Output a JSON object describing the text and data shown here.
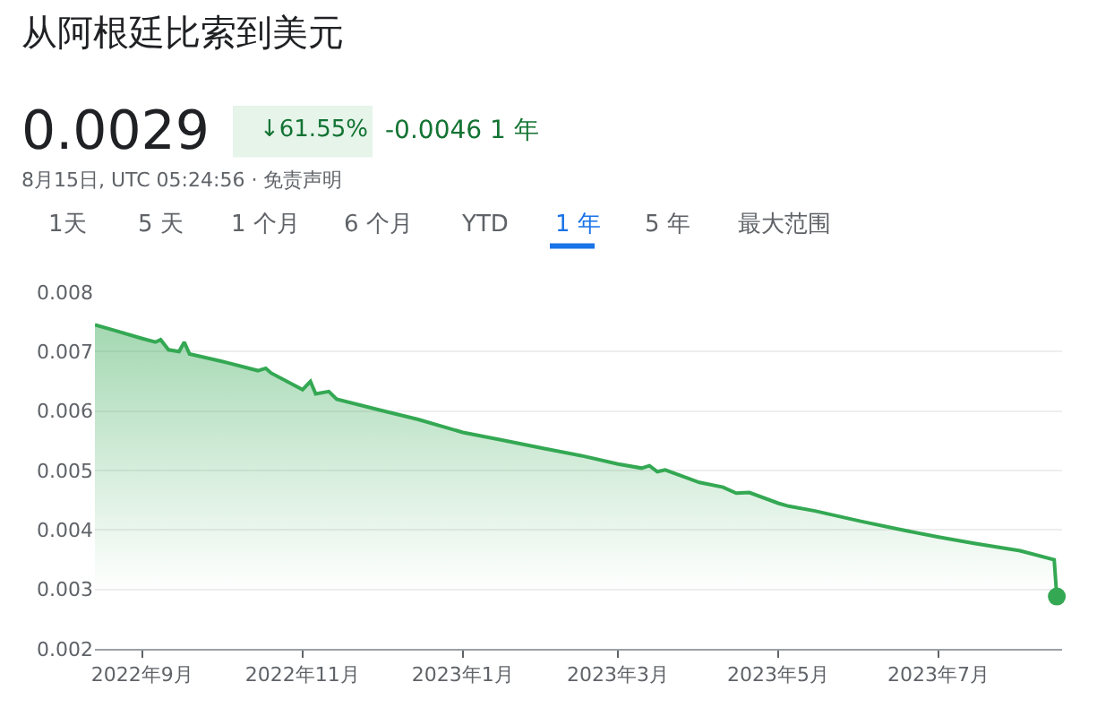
{
  "chart_data": {
    "type": "area",
    "title": "从阿根廷比索到美元",
    "annotations": [
      "0.0029",
      "↓61.55%",
      "-0.0046 1 年",
      "8月15日, UTC 05:24:56 · 免责声明",
      "1天",
      "5 天",
      "1 个月",
      "6 个月",
      "YTD",
      "1 年",
      "5 年",
      "最大范围"
    ],
    "series": [
      {
        "marker": "none",
        "color": "#34a853",
        "x": [
          "2022-08-14",
          "2022-08-22",
          "2022-09-01",
          "2022-09-06",
          "2022-09-08",
          "2022-09-11",
          "2022-09-15",
          "2022-09-17",
          "2022-09-19",
          "2022-10-01",
          "2022-10-15",
          "2022-10-18",
          "2022-10-20",
          "2022-11-01",
          "2022-11-04",
          "2022-11-06",
          "2022-11-11",
          "2022-11-14",
          "2022-12-01",
          "2022-12-15",
          "2023-01-01",
          "2023-01-15",
          "2023-02-01",
          "2023-02-15",
          "2023-03-01",
          "2023-03-10",
          "2023-03-13",
          "2023-03-16",
          "2023-03-19",
          "2023-04-01",
          "2023-04-10",
          "2023-04-15",
          "2023-04-20",
          "2023-05-01",
          "2023-05-05",
          "2023-05-15",
          "2023-06-01",
          "2023-06-15",
          "2023-07-01",
          "2023-07-15",
          "2023-08-01",
          "2023-08-14",
          "2023-08-15"
        ],
        "values": [
          0.00745,
          0.00735,
          0.00722,
          0.00716,
          0.0072,
          0.00703,
          0.007,
          0.00716,
          0.00696,
          0.00684,
          0.00668,
          0.00672,
          0.00664,
          0.00636,
          0.0065,
          0.00629,
          0.00633,
          0.0062,
          0.00601,
          0.00586,
          0.00564,
          0.00552,
          0.00537,
          0.00525,
          0.00511,
          0.00504,
          0.00508,
          0.00498,
          0.00501,
          0.0048,
          0.00472,
          0.00462,
          0.00463,
          0.00445,
          0.0044,
          0.00432,
          0.00415,
          0.00402,
          0.00388,
          0.00377,
          0.00365,
          0.0035,
          0.00288
        ]
      },
      {
        "type": "scatter",
        "marker": "circle",
        "color": "#34a853",
        "x": [
          "2023-08-15"
        ],
        "values": [
          0.00288
        ]
      }
    ],
    "grid": "y",
    "xlim": [
      "2022-08-14",
      "2023-08-17"
    ],
    "xticks": [
      {
        "value": "2022-09-01",
        "label": "2022年9月"
      },
      {
        "value": "2022-11-01",
        "label": "2022年11月"
      },
      {
        "value": "2023-01-01",
        "label": "2023年1月"
      },
      {
        "value": "2023-03-01",
        "label": "2023年3月"
      },
      {
        "value": "2023-05-01",
        "label": "2023年5月"
      },
      {
        "value": "2023-07-01",
        "label": "2023年7月"
      }
    ],
    "ylim": [
      0.002,
      0.008
    ],
    "yticks": [
      0.002,
      0.003,
      0.004,
      0.005,
      0.006,
      0.007,
      0.008
    ]
  }
}
